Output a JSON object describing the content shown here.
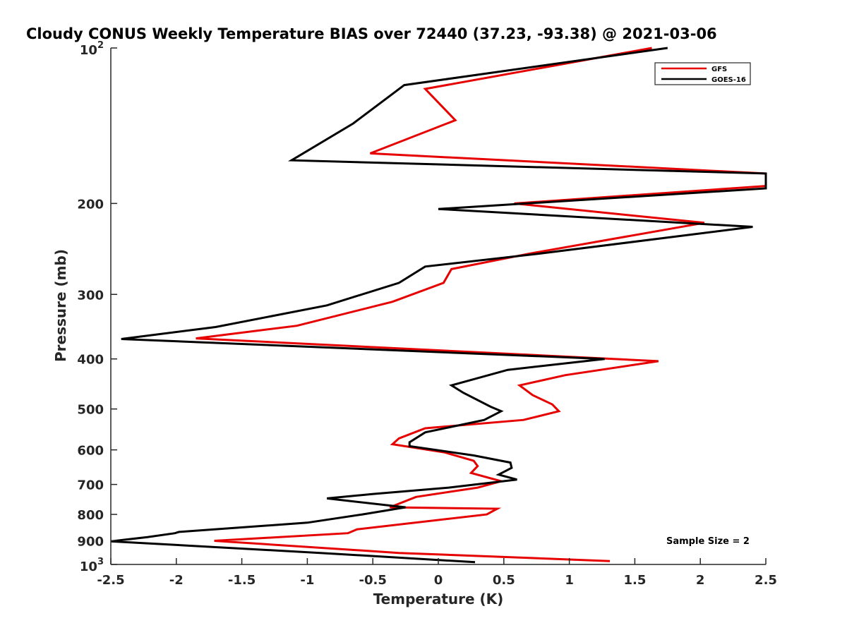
{
  "chart_data": {
    "type": "line",
    "title": "Cloudy CONUS Weekly Temperature BIAS over 72440 (37.23, -93.38) @ 2021-03-06",
    "xlabel": "Temperature (K)",
    "ylabel": "Pressure (mb)",
    "xlim": [
      -2.5,
      2.5
    ],
    "ylim": [
      100,
      1000
    ],
    "y_scale": "log",
    "y_reversed": true,
    "grid": false,
    "legend_position": "top-right",
    "x_ticks": [
      "-2.5",
      "-2",
      "-1.5",
      "-1",
      "-0.5",
      "0",
      "0.5",
      "1",
      "1.5",
      "2",
      "2.5"
    ],
    "y_ticks": [
      {
        "value": 100,
        "base": "10",
        "exp": "2",
        "label": ""
      },
      {
        "value": 200,
        "label": "200"
      },
      {
        "value": 300,
        "label": "300"
      },
      {
        "value": 400,
        "label": "400"
      },
      {
        "value": 500,
        "label": "500"
      },
      {
        "value": 600,
        "label": "600"
      },
      {
        "value": 700,
        "label": "700"
      },
      {
        "value": 800,
        "label": "800"
      },
      {
        "value": 900,
        "label": "900"
      },
      {
        "value": 1000,
        "base": "10",
        "exp": "3",
        "label": ""
      }
    ],
    "annotation": "Sample Size = 2",
    "series": [
      {
        "name": "GFS",
        "color": "#e60000",
        "points": [
          [
            1.63,
            100
          ],
          [
            -0.1,
            120
          ],
          [
            0.13,
            138
          ],
          [
            -0.52,
            160
          ],
          [
            2.5,
            175
          ],
          [
            2.5,
            185
          ],
          [
            0.58,
            200
          ],
          [
            2.03,
            218
          ],
          [
            0.7,
            250
          ],
          [
            0.1,
            268
          ],
          [
            0.04,
            285
          ],
          [
            -0.35,
            310
          ],
          [
            -1.08,
            345
          ],
          [
            -1.85,
            365
          ],
          [
            1.68,
            404
          ],
          [
            0.97,
            430
          ],
          [
            0.62,
            450
          ],
          [
            0.72,
            470
          ],
          [
            0.87,
            490
          ],
          [
            0.92,
            505
          ],
          [
            0.65,
            525
          ],
          [
            -0.1,
            545
          ],
          [
            -0.3,
            570
          ],
          [
            -0.35,
            585
          ],
          [
            0.05,
            607
          ],
          [
            0.27,
            630
          ],
          [
            0.3,
            645
          ],
          [
            0.25,
            665
          ],
          [
            0.48,
            690
          ],
          [
            0.3,
            710
          ],
          [
            -0.17,
            740
          ],
          [
            -0.37,
            775
          ],
          [
            0.45,
            780
          ],
          [
            0.37,
            800
          ],
          [
            -0.62,
            855
          ],
          [
            -0.69,
            870
          ],
          [
            -1.71,
            900
          ],
          [
            -0.3,
            950
          ],
          [
            1.31,
            985
          ]
        ]
      },
      {
        "name": "GOES-16",
        "color": "#000000",
        "points": [
          [
            1.75,
            100
          ],
          [
            -0.26,
            118
          ],
          [
            -0.65,
            140
          ],
          [
            -1.12,
            165
          ],
          [
            2.5,
            175
          ],
          [
            2.5,
            187
          ],
          [
            0.0,
            205
          ],
          [
            2.4,
            222
          ],
          [
            0.78,
            250
          ],
          [
            -0.1,
            265
          ],
          [
            -0.3,
            285
          ],
          [
            -0.85,
            315
          ],
          [
            -1.7,
            347
          ],
          [
            -2.42,
            366
          ],
          [
            1.27,
            400
          ],
          [
            0.53,
            420
          ],
          [
            0.1,
            450
          ],
          [
            0.19,
            465
          ],
          [
            0.4,
            495
          ],
          [
            0.48,
            505
          ],
          [
            0.35,
            525
          ],
          [
            -0.1,
            555
          ],
          [
            -0.22,
            580
          ],
          [
            -0.22,
            590
          ],
          [
            0.27,
            615
          ],
          [
            0.55,
            635
          ],
          [
            0.56,
            650
          ],
          [
            0.46,
            670
          ],
          [
            0.6,
            685
          ],
          [
            0.08,
            710
          ],
          [
            -0.49,
            730
          ],
          [
            -0.85,
            745
          ],
          [
            -0.25,
            775
          ],
          [
            -0.58,
            800
          ],
          [
            -1.0,
            830
          ],
          [
            -1.98,
            865
          ],
          [
            -2.01,
            870
          ],
          [
            -2.22,
            885
          ],
          [
            -2.5,
            902
          ],
          [
            -0.9,
            950
          ],
          [
            0.28,
            990
          ]
        ]
      }
    ]
  }
}
